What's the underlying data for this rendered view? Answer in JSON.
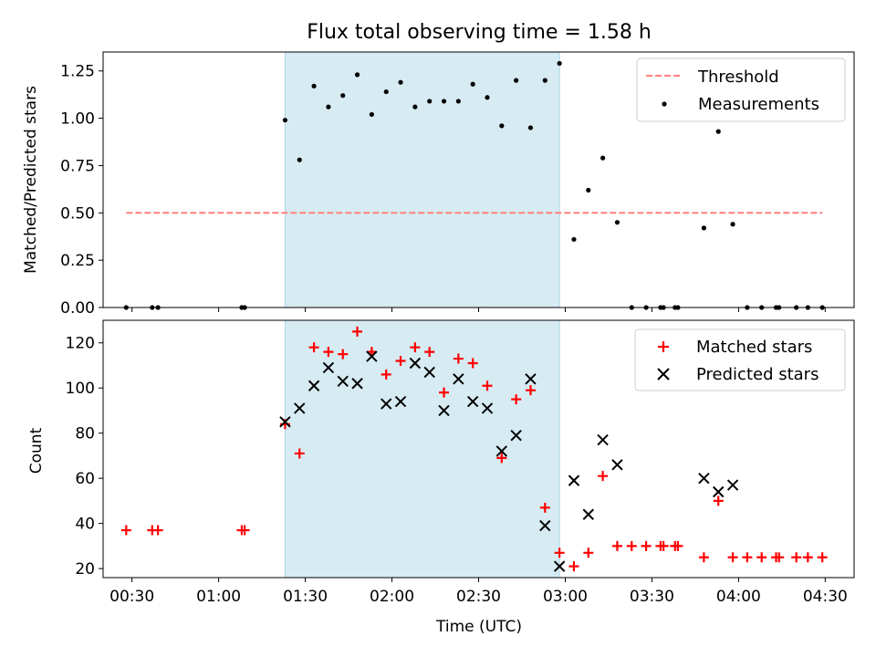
{
  "chart_data": {
    "type": "scatter",
    "title": "Flux total observing time = 1.58 h",
    "xlabel": "Time (UTC)",
    "x_unit": "minutes after 00:00 UTC",
    "xlim": [
      20,
      280
    ],
    "xticks": [
      {
        "value": 30,
        "label": "00:30"
      },
      {
        "value": 60,
        "label": "01:00"
      },
      {
        "value": 90,
        "label": "01:30"
      },
      {
        "value": 120,
        "label": "02:00"
      },
      {
        "value": 150,
        "label": "02:30"
      },
      {
        "value": 180,
        "label": "03:00"
      },
      {
        "value": 210,
        "label": "03:30"
      },
      {
        "value": 240,
        "label": "04:00"
      },
      {
        "value": 270,
        "label": "04:30"
      }
    ],
    "shaded_interval": [
      83,
      178
    ],
    "top": {
      "ylabel": "Matched/Predicted stars",
      "ylim": [
        0,
        1.35
      ],
      "yticks": [
        {
          "value": 0,
          "label": "0.00"
        },
        {
          "value": 0.25,
          "label": "0.25"
        },
        {
          "value": 0.5,
          "label": "0.50"
        },
        {
          "value": 0.75,
          "label": "0.75"
        },
        {
          "value": 1.0,
          "label": "1.00"
        },
        {
          "value": 1.25,
          "label": "1.25"
        }
      ],
      "threshold": {
        "name": "Threshold",
        "value": 0.5,
        "x_range": [
          28,
          269
        ],
        "color": "#ff7f7f"
      },
      "measurements": {
        "name": "Measurements",
        "color": "#000000",
        "x": [
          28,
          37,
          39,
          68,
          69,
          83,
          88,
          93,
          98,
          103,
          108,
          113,
          118,
          123,
          128,
          133,
          138,
          143,
          148,
          153,
          158,
          163,
          168,
          173,
          178,
          183,
          188,
          193,
          198,
          203,
          208,
          213,
          214,
          218,
          219,
          228,
          233,
          238,
          243,
          248,
          253,
          254,
          260,
          264,
          269
        ],
        "y": [
          0,
          0,
          0,
          0,
          0,
          0.99,
          0.78,
          1.17,
          1.06,
          1.12,
          1.23,
          1.02,
          1.14,
          1.19,
          1.06,
          1.09,
          1.09,
          1.09,
          1.18,
          1.11,
          0.96,
          1.2,
          0.95,
          1.2,
          1.29,
          0.36,
          0.62,
          0.79,
          0.45,
          0,
          0,
          0,
          0,
          0,
          0,
          0.42,
          0.93,
          0.44,
          0,
          0,
          0,
          0,
          0,
          0,
          0
        ]
      }
    },
    "bottom": {
      "ylabel": "Count",
      "ylim": [
        16,
        130
      ],
      "yticks": [
        {
          "value": 20,
          "label": "20"
        },
        {
          "value": 40,
          "label": "40"
        },
        {
          "value": 60,
          "label": "60"
        },
        {
          "value": 80,
          "label": "80"
        },
        {
          "value": 100,
          "label": "100"
        },
        {
          "value": 120,
          "label": "120"
        }
      ],
      "matched": {
        "name": "Matched stars",
        "color": "#ff0000",
        "x": [
          28,
          37,
          39,
          68,
          69,
          83,
          88,
          93,
          98,
          103,
          108,
          113,
          118,
          123,
          128,
          133,
          138,
          143,
          148,
          153,
          158,
          163,
          168,
          173,
          178,
          183,
          188,
          193,
          198,
          203,
          208,
          213,
          214,
          218,
          219,
          228,
          233,
          238,
          243,
          248,
          253,
          254,
          260,
          264,
          269
        ],
        "y": [
          37,
          37,
          37,
          37,
          37,
          84,
          71,
          118,
          116,
          115,
          125,
          116,
          106,
          112,
          118,
          116,
          98,
          113,
          111,
          101,
          69,
          95,
          99,
          47,
          27,
          21,
          27,
          61,
          30,
          30,
          30,
          30,
          30,
          30,
          30,
          25,
          50,
          25,
          25,
          25,
          25,
          25,
          25,
          25,
          25
        ]
      },
      "predicted": {
        "name": "Predicted stars",
        "color": "#000000",
        "x": [
          83,
          88,
          93,
          98,
          103,
          108,
          113,
          118,
          123,
          128,
          133,
          138,
          143,
          148,
          153,
          158,
          163,
          168,
          173,
          178,
          183,
          188,
          193,
          198,
          228,
          233,
          238
        ],
        "y": [
          85,
          91,
          101,
          109,
          103,
          102,
          114,
          93,
          94,
          111,
          107,
          90,
          104,
          94,
          91,
          72,
          79,
          104,
          39,
          21,
          59,
          44,
          77,
          66,
          60,
          54,
          57
        ]
      }
    }
  }
}
